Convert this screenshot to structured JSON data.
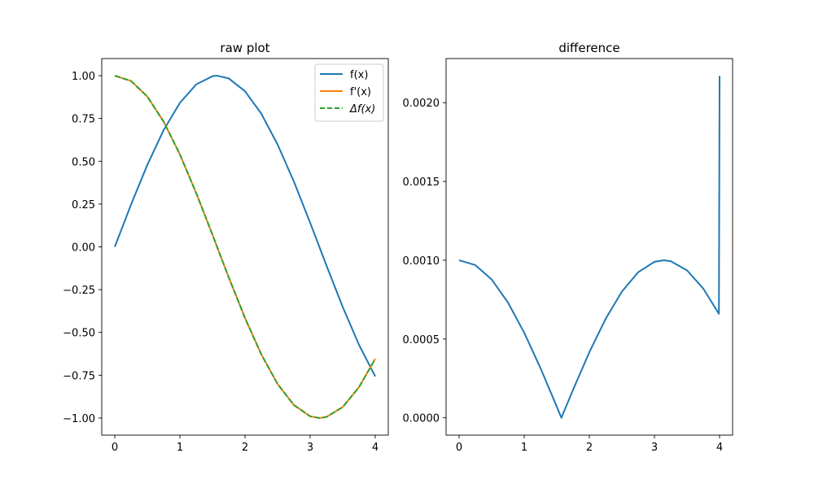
{
  "chart_data": [
    {
      "type": "line",
      "title": "raw plot",
      "xlabel": "",
      "ylabel": "",
      "xlim": [
        -0.2,
        4.2
      ],
      "ylim": [
        -1.1,
        1.1
      ],
      "xticks": [
        "0",
        "1",
        "2",
        "3",
        "4"
      ],
      "yticks": [
        "−1.00",
        "−0.75",
        "−0.50",
        "−0.25",
        "0.00",
        "0.25",
        "0.50",
        "0.75",
        "1.00"
      ],
      "grid": false,
      "legend": "top-right",
      "series": [
        {
          "name": "f(x)",
          "color": "#1f77b4",
          "style": "solid",
          "x": [
            0,
            0.25,
            0.5,
            0.75,
            1,
            1.25,
            1.5,
            1.5708,
            1.75,
            2,
            2.25,
            2.5,
            2.75,
            3,
            3.25,
            3.5,
            3.75,
            4
          ],
          "y": [
            0,
            0.247,
            0.479,
            0.682,
            0.841,
            0.949,
            0.997,
            1.0,
            0.984,
            0.909,
            0.778,
            0.598,
            0.382,
            0.141,
            -0.108,
            -0.351,
            -0.572,
            -0.757
          ]
        },
        {
          "name": "f'(x)",
          "color": "#ff7f0e",
          "style": "solid",
          "x": [
            0,
            0.25,
            0.5,
            0.75,
            1,
            1.25,
            1.5,
            1.75,
            2,
            2.25,
            2.5,
            2.75,
            3,
            3.1416,
            3.25,
            3.5,
            3.75,
            4
          ],
          "y": [
            1.0,
            0.969,
            0.878,
            0.732,
            0.54,
            0.315,
            0.071,
            -0.178,
            -0.416,
            -0.628,
            -0.801,
            -0.924,
            -0.99,
            -1.0,
            -0.994,
            -0.936,
            -0.82,
            -0.654
          ]
        },
        {
          "name": "Δf(x)",
          "color": "#2ca02c",
          "style": "dashed",
          "x": [
            0,
            0.25,
            0.5,
            0.75,
            1,
            1.25,
            1.5,
            1.75,
            2,
            2.25,
            2.5,
            2.75,
            3,
            3.1416,
            3.25,
            3.5,
            3.75,
            4
          ],
          "y": [
            1.0,
            0.969,
            0.878,
            0.732,
            0.54,
            0.315,
            0.071,
            -0.178,
            -0.416,
            -0.628,
            -0.801,
            -0.924,
            -0.99,
            -1.0,
            -0.994,
            -0.936,
            -0.82,
            -0.654
          ]
        }
      ]
    },
    {
      "type": "line",
      "title": "difference",
      "xlabel": "",
      "ylabel": "",
      "xlim": [
        -0.2,
        4.2
      ],
      "ylim": [
        -0.00011,
        0.00228
      ],
      "xticks": [
        "0",
        "1",
        "2",
        "3",
        "4"
      ],
      "yticks": [
        "0.0000",
        "0.0005",
        "0.0010",
        "0.0015",
        "0.0020"
      ],
      "grid": false,
      "series": [
        {
          "color": "#1f77b4",
          "style": "solid",
          "x": [
            0,
            0.25,
            0.5,
            0.75,
            1,
            1.25,
            1.5,
            1.5708,
            1.75,
            2,
            2.25,
            2.5,
            2.75,
            3,
            3.1416,
            3.25,
            3.5,
            3.75,
            3.99,
            4
          ],
          "y": [
            0.001,
            0.000969,
            0.000878,
            0.000732,
            0.00054,
            0.000315,
            7.1e-05,
            0.0,
            0.000178,
            0.000416,
            0.000628,
            0.000801,
            0.000924,
            0.00099,
            0.001,
            0.000994,
            0.000936,
            0.00082,
            0.00066,
            0.00217
          ]
        }
      ]
    }
  ]
}
